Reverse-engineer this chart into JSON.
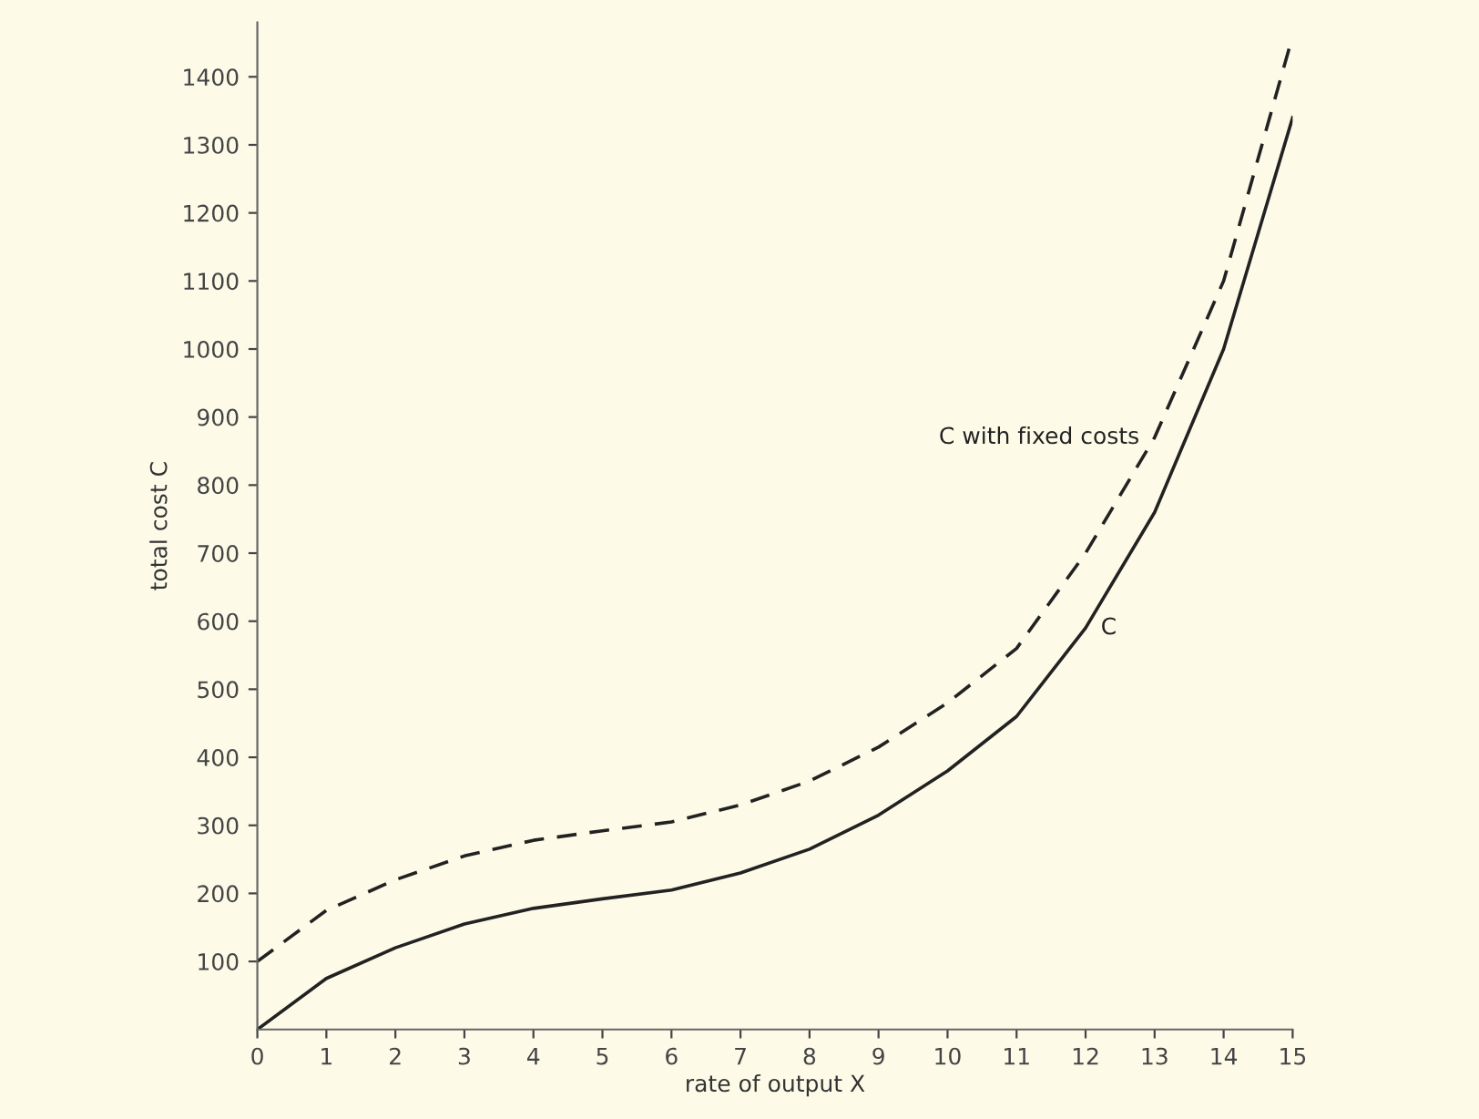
{
  "chart_data": {
    "type": "line",
    "xlabel": "rate of output X",
    "ylabel": "total cost C",
    "x": [
      0,
      1,
      2,
      3,
      4,
      5,
      6,
      7,
      8,
      9,
      10,
      11,
      12,
      13,
      14,
      15
    ],
    "series": [
      {
        "name": "C with fixed costs",
        "color": "#222222",
        "line_style": "dashed",
        "values": [
          100,
          175,
          220,
          255,
          278,
          292,
          305,
          330,
          365,
          415,
          480,
          560,
          700,
          870,
          1100,
          1460
        ]
      },
      {
        "name": "C",
        "color": "#222222",
        "line_style": "solid",
        "values": [
          0,
          75,
          120,
          155,
          178,
          192,
          205,
          230,
          265,
          315,
          380,
          460,
          590,
          760,
          1000,
          1340
        ]
      }
    ],
    "xlim": [
      0,
      15
    ],
    "ylim": [
      0,
      1480
    ],
    "xticks": [
      0,
      1,
      2,
      3,
      4,
      5,
      6,
      7,
      8,
      9,
      10,
      11,
      12,
      13,
      14,
      15
    ],
    "yticks": [
      100,
      200,
      300,
      400,
      500,
      600,
      700,
      800,
      900,
      1000,
      1100,
      1200,
      1300,
      1400
    ],
    "grid": false,
    "legend": false,
    "marker": "none"
  }
}
